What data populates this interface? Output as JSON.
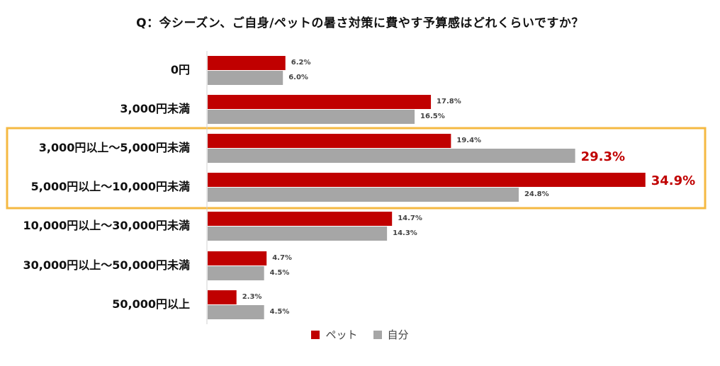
{
  "chart_data": {
    "type": "bar",
    "orientation": "horizontal",
    "title": "Q：今シーズン、ご自身/ペットの暑さ対策に費やす予算感はどれくらいですか？",
    "categories": [
      "0円",
      "3,000円未満",
      "3,000円以上～5,000円未満",
      "5,000円以上～10,000円未満",
      "10,000円以上～30,000円未満",
      "30,000円以上～50,000円未満",
      "50,000円以上"
    ],
    "series": [
      {
        "name": "ペット",
        "color": "#c00000",
        "values": [
          6.2,
          17.8,
          19.4,
          34.9,
          14.7,
          4.7,
          2.3
        ],
        "labels": [
          "6.2%",
          "17.8%",
          "19.4%",
          "34.9%",
          "14.7%",
          "4.7%",
          "2.3%"
        ]
      },
      {
        "name": "自分",
        "color": "#a6a6a6",
        "values": [
          6.0,
          16.5,
          29.3,
          24.8,
          14.3,
          4.5,
          4.5
        ],
        "labels": [
          "6.0%",
          "16.5%",
          "29.3%",
          "24.8%",
          "14.3%",
          "4.5%",
          "4.5%"
        ]
      }
    ],
    "highlighted_categories": [
      "3,000円以上～5,000円未満",
      "5,000円以上～10,000円未満"
    ],
    "highlight_color": "#f5b942",
    "emphasized_labels": [
      "29.3%",
      "34.9%"
    ],
    "emphasis_color": "#c00000",
    "legend_position": "bottom",
    "grid": false
  }
}
